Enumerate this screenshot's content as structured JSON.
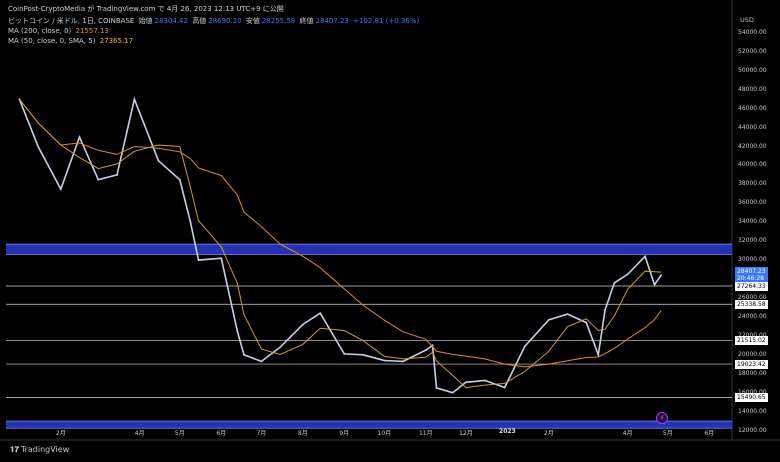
{
  "header": {
    "source_line": "CoinPost-CryptoMedia が TradingView.com で 4月 26, 2023 12:13 UTC+9 に公開",
    "symbol": "ビットコイン / 米ドル, 1日, COINBASE",
    "open_label": "始値",
    "open": "28304.42",
    "high_label": "高値",
    "high": "28690.20",
    "low_label": "安値",
    "low": "28255.58",
    "close_label": "終値",
    "close": "28407.23",
    "change": "+102.81 (+0.36%)",
    "ma200_label": "MA (200, close, 0)",
    "ma200_value": "21557.13",
    "ma50_label": "MA (50, close, 0, SMA, 5)",
    "ma50_value": "27365.17"
  },
  "currency": "USD",
  "brand": "TradingView",
  "colors": {
    "background": "#000000",
    "candle": "#c9cfe8",
    "ma200": "#e08a2a",
    "ma50": "#c9a227",
    "zone": "#2a3bd6",
    "hline": "#d8d8d8",
    "price_tag": "#3b78ff"
  },
  "price_tags": [
    {
      "text": "28407.23",
      "text2": "20:46:28",
      "kind": "current"
    },
    {
      "text": "27264.33",
      "kind": "level"
    },
    {
      "text": "25338.58",
      "kind": "level"
    },
    {
      "text": "21515.02",
      "kind": "level"
    },
    {
      "text": "19023.42",
      "kind": "level"
    },
    {
      "text": "15490.65",
      "kind": "level"
    }
  ],
  "chart_data": {
    "type": "line",
    "title": "ビットコイン / 米ドル, 1日, COINBASE",
    "ylabel": "USD",
    "ylim": [
      11000,
      56000
    ],
    "yticks": [
      12000,
      14000,
      16000,
      18000,
      20000,
      22000,
      24000,
      26000,
      28000,
      30000,
      32000,
      34000,
      36000,
      38000,
      40000,
      42000,
      44000,
      46000,
      48000,
      50000,
      52000,
      54000
    ],
    "xticks": [
      "2月",
      "4月",
      "5月",
      "6月",
      "7月",
      "8月",
      "9月",
      "10月",
      "11月",
      "12月",
      "2023",
      "2月",
      "4月",
      "5月",
      "6月"
    ],
    "x": [
      "2022-01-01",
      "2022-01-15",
      "2022-02-01",
      "2022-02-15",
      "2022-03-01",
      "2022-03-15",
      "2022-03-28",
      "2022-04-15",
      "2022-05-01",
      "2022-05-09",
      "2022-05-15",
      "2022-06-01",
      "2022-06-13",
      "2022-06-18",
      "2022-07-01",
      "2022-07-15",
      "2022-08-01",
      "2022-08-14",
      "2022-09-01",
      "2022-09-15",
      "2022-10-01",
      "2022-10-15",
      "2022-11-01",
      "2022-11-06",
      "2022-11-09",
      "2022-11-21",
      "2022-12-01",
      "2022-12-15",
      "2022-12-30",
      "2023-01-14",
      "2023-02-01",
      "2023-02-15",
      "2023-03-01",
      "2023-03-10",
      "2023-03-15",
      "2023-03-22",
      "2023-04-01",
      "2023-04-14",
      "2023-04-21",
      "2023-04-26"
    ],
    "series": [
      {
        "values": [
          47000,
          42000,
          37500,
          43000,
          38500,
          39000,
          47000,
          40500,
          38500,
          34000,
          30000,
          30200,
          22500,
          20000,
          19300,
          20800,
          23200,
          24400,
          20100,
          20000,
          19400,
          19300,
          20500,
          21000,
          16500,
          16000,
          17100,
          17300,
          16550,
          20900,
          23700,
          24300,
          23400,
          20000,
          24700,
          27600,
          28500,
          30400,
          27400,
          28407
        ]
      }
    ],
    "hlines": [
      27264.33,
      25338.58,
      21515.02,
      19023.42,
      15490.65
    ],
    "zones": [
      [
        30600,
        31700
      ],
      [
        12250,
        13000
      ]
    ],
    "grid": false,
    "legend": "top-left"
  }
}
